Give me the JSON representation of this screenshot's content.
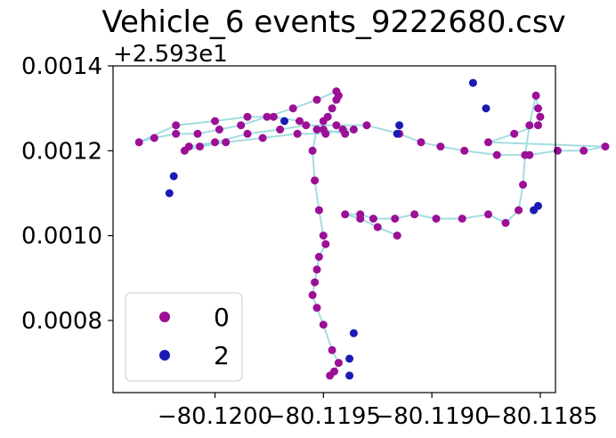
{
  "chart_data": {
    "type": "scatter",
    "title": "Vehicle_6 events_9222680.csv",
    "xlabel": "",
    "ylabel": "",
    "y_offset_text": "+2.593e1",
    "xlim": [
      -80.12047,
      -80.11843
    ],
    "ylim": [
      0.00063,
      0.0014
    ],
    "x_ticks": [
      -80.12,
      -80.1195,
      -80.119,
      -80.1185
    ],
    "x_tick_labels": [
      "−80.1200",
      "−80.1195",
      "−80.1190",
      "−80.1185"
    ],
    "y_ticks": [
      0.0008,
      0.001,
      0.0012,
      0.0014
    ],
    "y_tick_labels": [
      "0.0008",
      "0.0010",
      "0.0012",
      "0.0014"
    ],
    "grid": false,
    "legend_position": "lower-left",
    "path_color": "#a4dde0",
    "series": [
      {
        "name": "0",
        "color": "#9c0f96",
        "x": [
          -80.11947,
          -80.11945,
          -80.11943,
          -80.11946,
          -80.1195,
          -80.11953,
          -80.11955,
          -80.11954,
          -80.11953,
          -80.11952,
          -80.11949,
          -80.1195,
          -80.11952,
          -80.11954,
          -80.11955,
          -80.11953,
          -80.1195,
          -80.11948,
          -80.11946,
          -80.11944,
          -80.11943,
          -80.11944,
          -80.11953,
          -80.11964,
          -80.11976,
          -80.11988,
          -80.11998,
          -80.12008,
          -80.12018,
          -80.12028,
          -80.12035,
          -80.12018,
          -80.12,
          -80.11985,
          -80.11973,
          -80.11961,
          -80.1195,
          -80.1194,
          -80.11936,
          -80.11941,
          -80.11949,
          -80.11962,
          -80.11978,
          -80.11995,
          -80.12007,
          -80.12014,
          -80.12012,
          -80.12,
          -80.11985,
          -80.1197,
          -80.11958,
          -80.11944,
          -80.1193,
          -80.11915,
          -80.11905,
          -80.11896,
          -80.11885,
          -80.1187,
          -80.11855,
          -80.11842,
          -80.1183,
          -80.1182,
          -80.11874,
          -80.11862,
          -80.11851,
          -80.1185,
          -80.11851,
          -80.11852,
          -80.11855,
          -80.11857,
          -80.11858,
          -80.1186,
          -80.11866,
          -80.11874,
          -80.11886,
          -80.11898,
          -80.11908,
          -80.11917,
          -80.11927,
          -80.11933,
          -80.1194,
          -80.11933,
          -80.11925,
          -80.11916
        ],
        "y": [
          0.00067,
          0.00068,
          0.0007,
          0.00073,
          0.00079,
          0.00083,
          0.00086,
          0.00089,
          0.00092,
          0.00095,
          0.00098,
          0.001,
          0.00106,
          0.00113,
          0.0012,
          0.00125,
          0.00127,
          0.00128,
          0.0013,
          0.00132,
          0.00133,
          0.00134,
          0.00132,
          0.0013,
          0.00128,
          0.00126,
          0.00125,
          0.00124,
          0.00124,
          0.00123,
          0.00122,
          0.00126,
          0.00127,
          0.00128,
          0.00128,
          0.00127,
          0.00125,
          0.00124,
          0.00125,
          0.00125,
          0.00124,
          0.00124,
          0.00123,
          0.00122,
          0.00121,
          0.0012,
          0.00121,
          0.00122,
          0.00124,
          0.00125,
          0.00126,
          0.00126,
          0.00126,
          0.00124,
          0.00122,
          0.00121,
          0.0012,
          0.00119,
          0.00119,
          0.0012,
          0.0012,
          0.00121,
          0.00122,
          0.00124,
          0.00126,
          0.00128,
          0.0013,
          0.00133,
          0.00126,
          0.00119,
          0.00112,
          0.00106,
          0.00103,
          0.00105,
          0.00104,
          0.00104,
          0.00105,
          0.00104,
          0.00104,
          0.00105,
          0.00105,
          0.00104,
          0.00102,
          0.001
        ]
      },
      {
        "name": "2",
        "color": "#1a1ab5",
        "x": [
          -80.11938,
          -80.11938,
          -80.11936,
          -80.11875,
          -80.11881,
          -80.11851,
          -80.11853,
          -80.11916,
          -80.11915,
          -80.11968,
          -80.12019,
          -80.12021
        ],
        "y": [
          0.00067,
          0.00071,
          0.00077,
          0.0013,
          0.00136,
          0.00107,
          0.00106,
          0.00124,
          0.00126,
          0.00127,
          0.00114,
          0.0011
        ]
      }
    ],
    "legend_entries": [
      "0",
      "2"
    ]
  }
}
